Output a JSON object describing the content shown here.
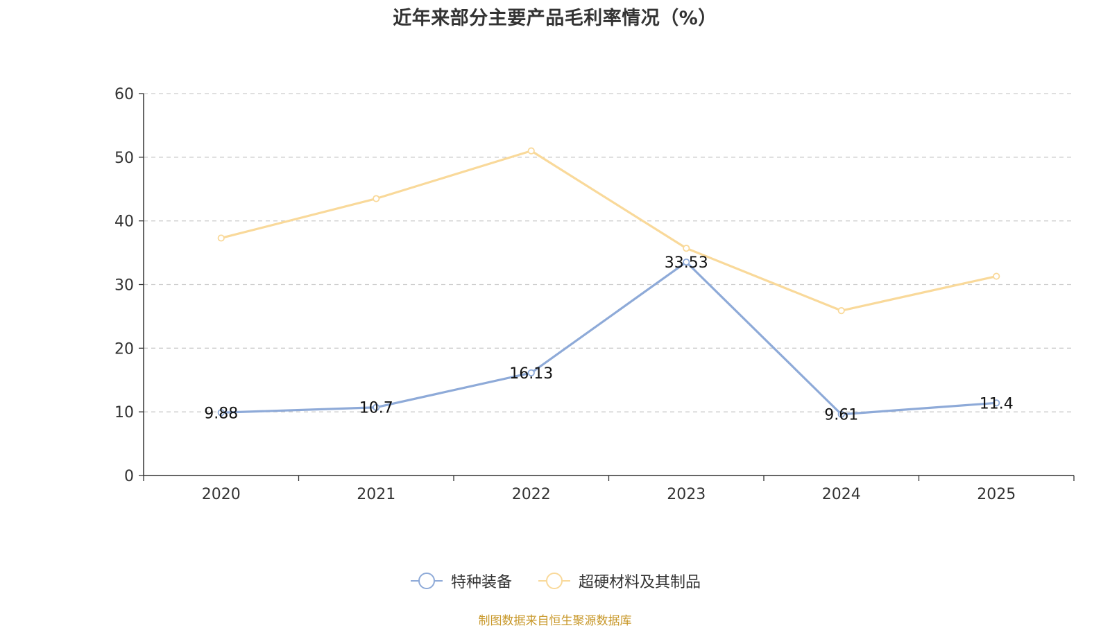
{
  "chart_data": {
    "type": "line",
    "title": "近年来部分主要产品毛利率情况（%）",
    "categories": [
      "2020",
      "2021",
      "2022",
      "2023",
      "2024",
      "2025"
    ],
    "ylim": [
      0,
      60
    ],
    "yticks": [
      0,
      10,
      20,
      30,
      40,
      50,
      60
    ],
    "grid": true,
    "legend_position": "bottom",
    "series": [
      {
        "name": "特种装备",
        "values": [
          9.88,
          10.7,
          16.13,
          33.53,
          9.61,
          11.4
        ],
        "labels": [
          "9.88",
          "10.7",
          "16.13",
          "33.53",
          "9.61",
          "11.4"
        ],
        "color": "#8eaad8",
        "show_labels": true
      },
      {
        "name": "超硬材料及其制品",
        "values": [
          37.3,
          43.5,
          51.0,
          35.7,
          25.9,
          31.3
        ],
        "color": "#f9d99a",
        "show_labels": false
      }
    ],
    "xlabel": "",
    "ylabel": ""
  },
  "footer": {
    "source": "制图数据来自恒生聚源数据库"
  },
  "colors": {
    "axis": "#333333",
    "grid": "#cccccc",
    "title": "#333333",
    "source": "#c8982a"
  }
}
